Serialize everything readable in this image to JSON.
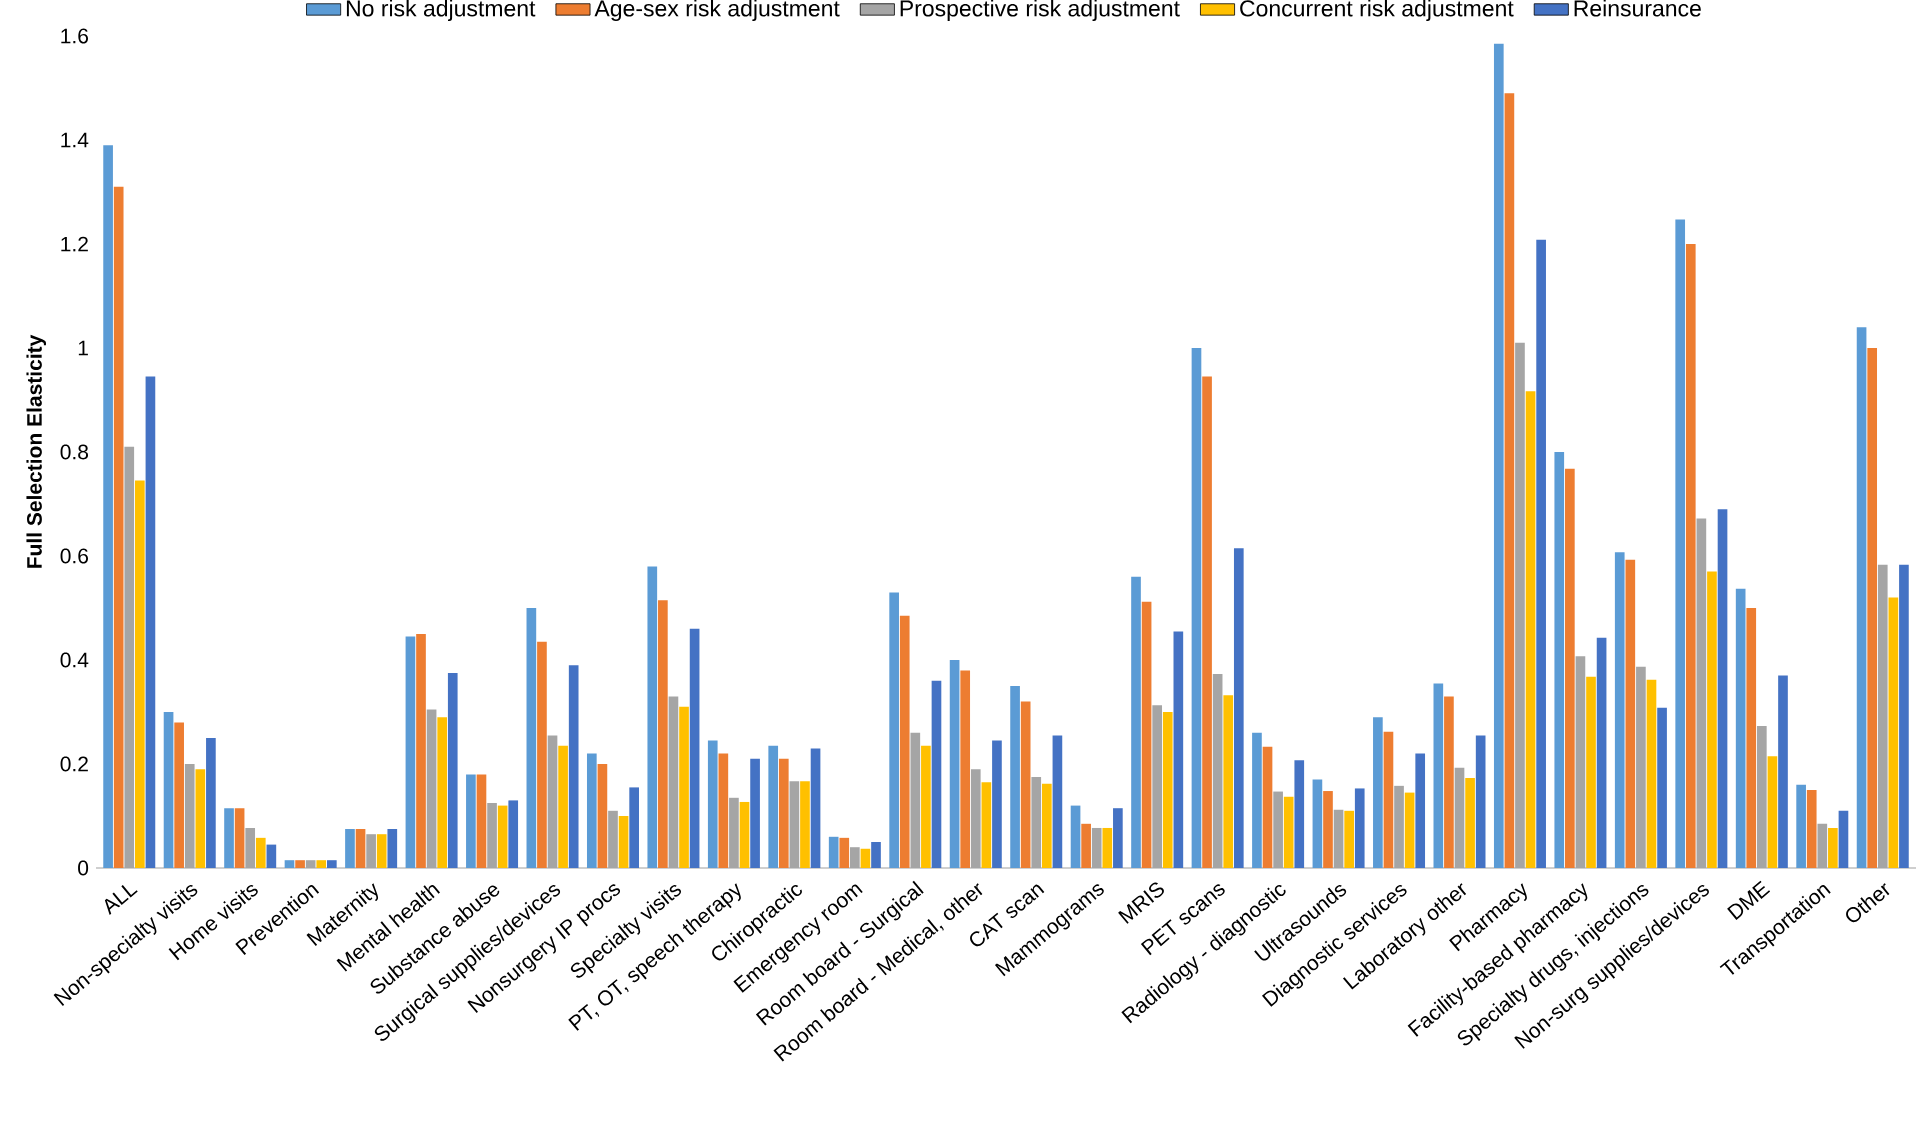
{
  "chart_data": {
    "type": "bar",
    "ylabel": "Full Selection Elasticity",
    "categories": [
      "ALL",
      "Non-specialty visits",
      "Home visits",
      "Prevention",
      "Maternity",
      "Mental health",
      "Substance abuse",
      "Surgical supplies/devices",
      "Nonsurgery IP procs",
      "Specialty visits",
      "PT, OT, speech therapy",
      "Chiropractic",
      "Emergency room",
      "Room board - Surgical",
      "Room board - Medical, other",
      "CAT scan",
      "Mammograms",
      "MRIS",
      "PET scans",
      "Radiology - diagnostic",
      "Ultrasounds",
      "Diagnostic services",
      "Laboratory other",
      "Pharmacy",
      "Facility-based pharmacy",
      "Specialty drugs, injections",
      "Non-surg supplies/devices",
      "DME",
      "Transportation",
      "Other"
    ],
    "series": [
      {
        "name": "No risk adjustment",
        "color": "#5b9bd5",
        "values": [
          1.39,
          0.3,
          0.115,
          0.015,
          0.075,
          0.445,
          0.18,
          0.5,
          0.22,
          0.58,
          0.245,
          0.235,
          0.06,
          0.53,
          0.4,
          0.35,
          0.12,
          0.56,
          1.0,
          0.26,
          0.17,
          0.29,
          0.355,
          1.585,
          0.8,
          0.607,
          1.247,
          0.537,
          0.16,
          1.04
        ]
      },
      {
        "name": "Age-sex risk adjustment",
        "color": "#ed7d31",
        "values": [
          1.31,
          0.28,
          0.115,
          0.015,
          0.075,
          0.45,
          0.18,
          0.435,
          0.2,
          0.515,
          0.22,
          0.21,
          0.058,
          0.485,
          0.38,
          0.32,
          0.085,
          0.512,
          0.945,
          0.233,
          0.148,
          0.262,
          0.33,
          1.49,
          0.768,
          0.593,
          1.2,
          0.5,
          0.15,
          1.0
        ]
      },
      {
        "name": "Prospective risk adjustment",
        "color": "#a5a5a5",
        "values": [
          0.81,
          0.2,
          0.077,
          0.015,
          0.065,
          0.305,
          0.125,
          0.255,
          0.11,
          0.33,
          0.135,
          0.167,
          0.04,
          0.26,
          0.19,
          0.175,
          0.077,
          0.313,
          0.373,
          0.147,
          0.112,
          0.158,
          0.193,
          1.01,
          0.407,
          0.387,
          0.672,
          0.273,
          0.085,
          0.583
        ]
      },
      {
        "name": "Concurrent risk adjustment",
        "color": "#ffc000",
        "values": [
          0.745,
          0.19,
          0.058,
          0.015,
          0.065,
          0.29,
          0.12,
          0.235,
          0.1,
          0.31,
          0.127,
          0.167,
          0.037,
          0.235,
          0.165,
          0.162,
          0.077,
          0.3,
          0.332,
          0.137,
          0.11,
          0.145,
          0.173,
          0.917,
          0.368,
          0.362,
          0.57,
          0.215,
          0.077,
          0.52
        ]
      },
      {
        "name": "Reinsurance",
        "color": "#4472c4",
        "values": [
          0.945,
          0.25,
          0.045,
          0.015,
          0.075,
          0.375,
          0.13,
          0.39,
          0.155,
          0.46,
          0.21,
          0.23,
          0.05,
          0.36,
          0.245,
          0.255,
          0.115,
          0.455,
          0.615,
          0.207,
          0.153,
          0.22,
          0.255,
          1.208,
          0.443,
          0.308,
          0.69,
          0.37,
          0.11,
          0.583
        ]
      }
    ],
    "ylim": [
      0,
      1.6
    ],
    "yticks": [
      0,
      0.2,
      0.4,
      0.6,
      0.8,
      1,
      1.2,
      1.4,
      1.6
    ],
    "grid": false,
    "legend": "top"
  }
}
